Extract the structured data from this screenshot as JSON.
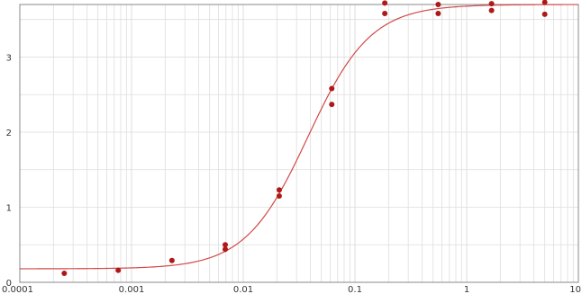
{
  "chart_data": {
    "type": "scatter",
    "title": "",
    "xlabel": "",
    "ylabel": "",
    "x_scale": "log",
    "xlim": [
      0.0001,
      10
    ],
    "ylim": [
      0,
      3.7
    ],
    "grid": true,
    "x_ticks": [
      "0.0001",
      "0.001",
      "0.01",
      "0.1",
      "1",
      "10"
    ],
    "y_ticks": [
      "0",
      "1",
      "2",
      "3"
    ],
    "series": [
      {
        "kind": "points",
        "points": [
          {
            "x": 0.00025,
            "y": 0.12
          },
          {
            "x": 0.00076,
            "y": 0.16
          },
          {
            "x": 0.0023,
            "y": 0.29
          },
          {
            "x": 0.0069,
            "y": 0.44
          },
          {
            "x": 0.0069,
            "y": 0.5
          },
          {
            "x": 0.021,
            "y": 1.15
          },
          {
            "x": 0.021,
            "y": 1.23
          },
          {
            "x": 0.062,
            "y": 2.37
          },
          {
            "x": 0.062,
            "y": 2.58
          },
          {
            "x": 0.185,
            "y": 3.58
          },
          {
            "x": 0.185,
            "y": 3.72
          },
          {
            "x": 0.556,
            "y": 3.58
          },
          {
            "x": 0.556,
            "y": 3.7
          },
          {
            "x": 1.67,
            "y": 3.62
          },
          {
            "x": 1.67,
            "y": 3.71
          },
          {
            "x": 5.0,
            "y": 3.57
          },
          {
            "x": 5.0,
            "y": 3.73
          }
        ]
      },
      {
        "kind": "fitted-curve",
        "model": "4PL",
        "bottom": 0.18,
        "top": 3.7,
        "ec50": 0.038,
        "hill": 1.55
      }
    ],
    "colors": {
      "point": "#b01818",
      "curve": "#d24848",
      "grid": "#dedede",
      "axis": "#888888"
    }
  }
}
